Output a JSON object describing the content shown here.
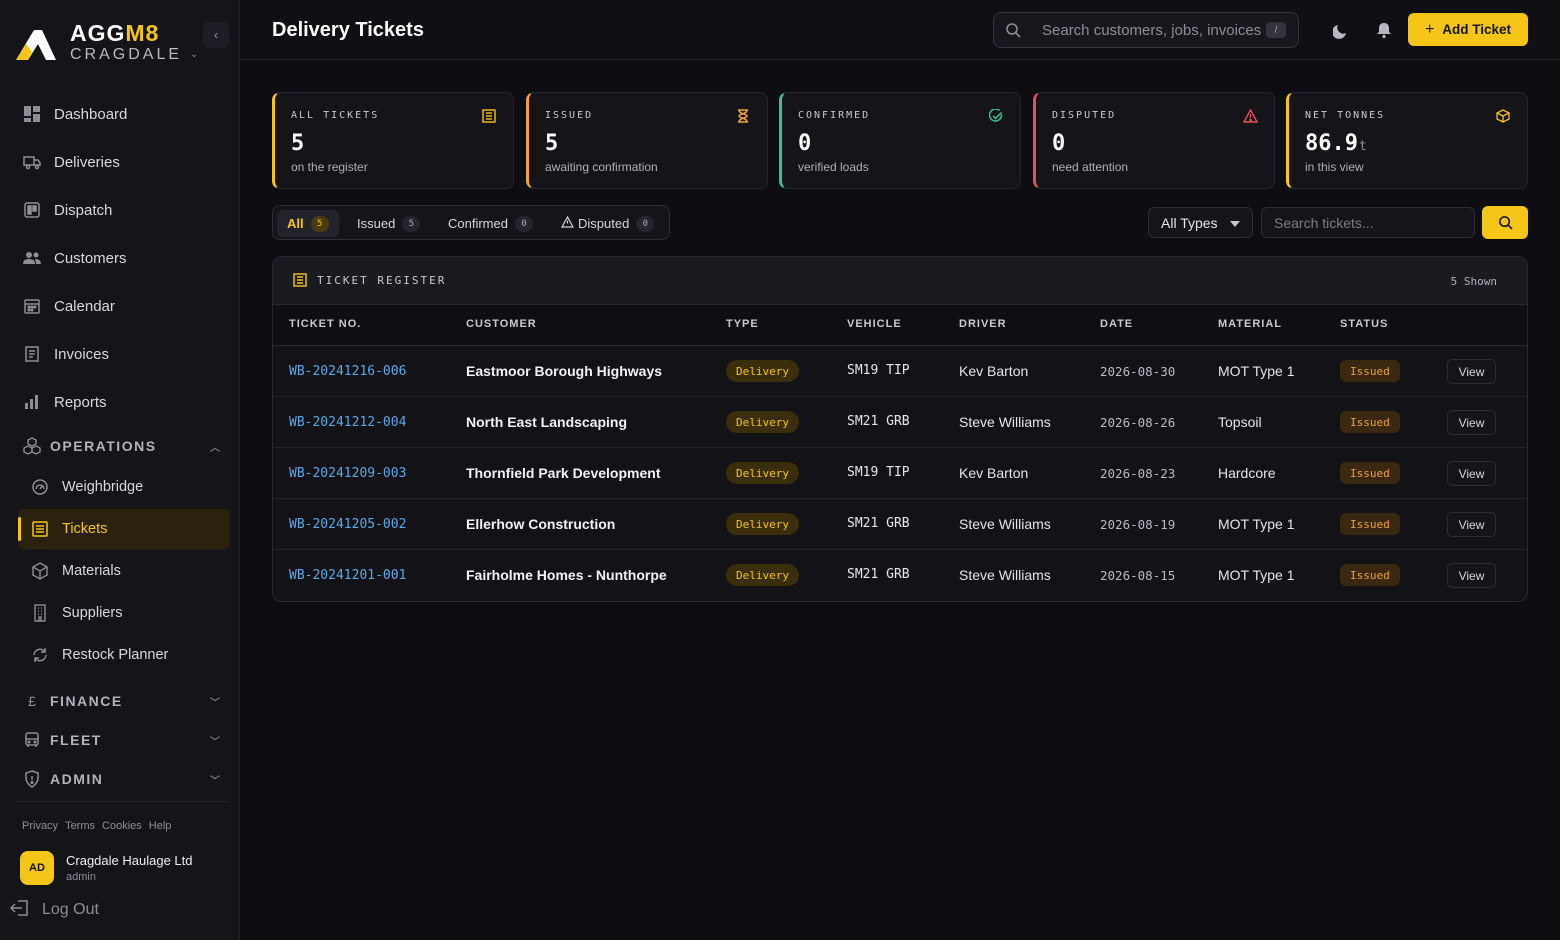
{
  "brand": {
    "name_main": "AGG",
    "name_accent": "M8",
    "subtitle": "CRAGDALE"
  },
  "colors": {
    "accent": "#f5c518",
    "link": "#5aa9e6",
    "issued": "#f0a234",
    "confirmed": "#3fbf8f",
    "disputed": "#e0525f",
    "background": "#0e0e12"
  },
  "nav": {
    "items": [
      {
        "label": "Dashboard",
        "icon": "dashboard-icon"
      },
      {
        "label": "Deliveries",
        "icon": "truck-icon"
      },
      {
        "label": "Dispatch",
        "icon": "dispatch-board-icon"
      },
      {
        "label": "Customers",
        "icon": "users-icon"
      },
      {
        "label": "Calendar",
        "icon": "calendar-icon"
      },
      {
        "label": "Invoices",
        "icon": "invoice-icon"
      },
      {
        "label": "Reports",
        "icon": "bar-chart-icon"
      }
    ],
    "operations": {
      "label": "OPERATIONS",
      "items": [
        {
          "label": "Weighbridge",
          "icon": "gauge-icon"
        },
        {
          "label": "Tickets",
          "icon": "ticket-icon"
        },
        {
          "label": "Materials",
          "icon": "box-icon"
        },
        {
          "label": "Suppliers",
          "icon": "building-icon"
        },
        {
          "label": "Restock Planner",
          "icon": "refresh-icon"
        }
      ]
    },
    "finance": {
      "label": "FINANCE",
      "icon_glyph": "£"
    },
    "fleet": {
      "label": "FLEET"
    },
    "admin": {
      "label": "ADMIN"
    }
  },
  "footer": {
    "links": [
      "Privacy",
      "Terms",
      "Cookies",
      "Help"
    ],
    "user": {
      "initials": "AD",
      "name": "Cragdale Haulage Ltd",
      "role": "admin"
    },
    "logout": "Log Out"
  },
  "header": {
    "title": "Delivery Tickets",
    "search_placeholder": "Search customers, jobs, invoices",
    "search_shortcut": "/",
    "add_button": "Add Ticket"
  },
  "stats": [
    {
      "title": "ALL TICKETS",
      "value": "5",
      "unit": "",
      "sub": "on the register",
      "color": "#f5c518",
      "icon": "register-icon"
    },
    {
      "title": "ISSUED",
      "value": "5",
      "unit": "",
      "sub": "awaiting confirmation",
      "color": "#f0a234",
      "icon": "hourglass-icon"
    },
    {
      "title": "CONFIRMED",
      "value": "0",
      "unit": "",
      "sub": "verified loads",
      "color": "#3fbf8f",
      "icon": "check-circle-icon"
    },
    {
      "title": "DISPUTED",
      "value": "0",
      "unit": "",
      "sub": "need attention",
      "color": "#e0525f",
      "icon": "warning-icon"
    },
    {
      "title": "NET TONNES",
      "value": "86.9",
      "unit": "t",
      "sub": "in this view",
      "color": "#f5c518",
      "icon": "cube-icon"
    }
  ],
  "filters": {
    "tabs": [
      {
        "label": "All",
        "count": "5"
      },
      {
        "label": "Issued",
        "count": "5"
      },
      {
        "label": "Confirmed",
        "count": "0"
      },
      {
        "label": "Disputed",
        "count": "0"
      }
    ],
    "type_select": "All Types",
    "search_placeholder": "Search tickets..."
  },
  "table": {
    "title": "TICKET REGISTER",
    "count": "5 Shown",
    "columns": [
      "TICKET NO.",
      "CUSTOMER",
      "TYPE",
      "VEHICLE",
      "DRIVER",
      "DATE",
      "MATERIAL",
      "STATUS"
    ],
    "view_label": "View",
    "rows": [
      {
        "ticket": "WB-20241216-006",
        "customer": "Eastmoor Borough Highways",
        "type": "Delivery",
        "vehicle": "SM19 TIP",
        "driver": "Kev Barton",
        "date": "2026-08-30",
        "material": "MOT Type 1",
        "status": "Issued"
      },
      {
        "ticket": "WB-20241212-004",
        "customer": "North East Landscaping",
        "type": "Delivery",
        "vehicle": "SM21 GRB",
        "driver": "Steve Williams",
        "date": "2026-08-26",
        "material": "Topsoil",
        "status": "Issued"
      },
      {
        "ticket": "WB-20241209-003",
        "customer": "Thornfield Park Development",
        "type": "Delivery",
        "vehicle": "SM19 TIP",
        "driver": "Kev Barton",
        "date": "2026-08-23",
        "material": "Hardcore",
        "status": "Issued"
      },
      {
        "ticket": "WB-20241205-002",
        "customer": "Ellerhow Construction",
        "type": "Delivery",
        "vehicle": "SM21 GRB",
        "driver": "Steve Williams",
        "date": "2026-08-19",
        "material": "MOT Type 1",
        "status": "Issued"
      },
      {
        "ticket": "WB-20241201-001",
        "customer": "Fairholme Homes - Nunthorpe",
        "type": "Delivery",
        "vehicle": "SM21 GRB",
        "driver": "Steve Williams",
        "date": "2026-08-15",
        "material": "MOT Type 1",
        "status": "Issued"
      }
    ]
  }
}
